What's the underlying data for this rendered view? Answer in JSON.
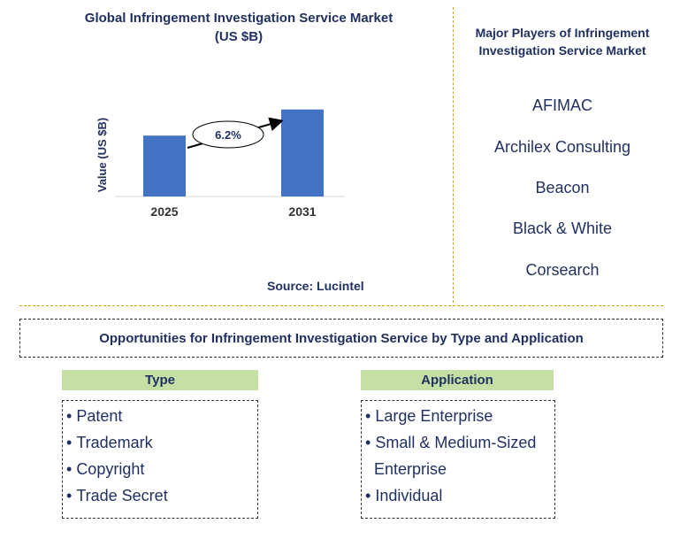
{
  "chart_data": {
    "type": "bar",
    "title": "Global Infringement Investigation Service Market\n(US $B)",
    "title_line1": "Global Infringement Investigation Service Market",
    "title_line2": "(US $B)",
    "ylabel": "Value (US $B)",
    "categories": [
      "2025",
      "2031"
    ],
    "values": [
      1.0,
      1.43
    ],
    "ylim": [
      0,
      1.6
    ],
    "annotation": "6.2%",
    "bar_color": "#4472c4",
    "grid": false
  },
  "source": "Source: Lucintel",
  "players": {
    "title_line1": "Major Players of Infringement",
    "title_line2": "Investigation Service Market",
    "items": [
      "AFIMAC",
      "Archilex Consulting",
      "Beacon",
      "Black & White",
      "Corsearch"
    ]
  },
  "opportunities": {
    "title": "Opportunities for Infringement Investigation Service by Type and Application",
    "type": {
      "header": "Type",
      "items": [
        "Patent",
        "Trademark",
        "Copyright",
        "Trade Secret"
      ]
    },
    "application": {
      "header": "Application",
      "items": [
        "Large Enterprise",
        "Small & Medium-Sized",
        "Enterprise",
        "Individual"
      ]
    }
  },
  "colors": {
    "accent_text": "#1f2f5f",
    "divider": "#d4a300",
    "segment_header": "#c5e0a5"
  }
}
